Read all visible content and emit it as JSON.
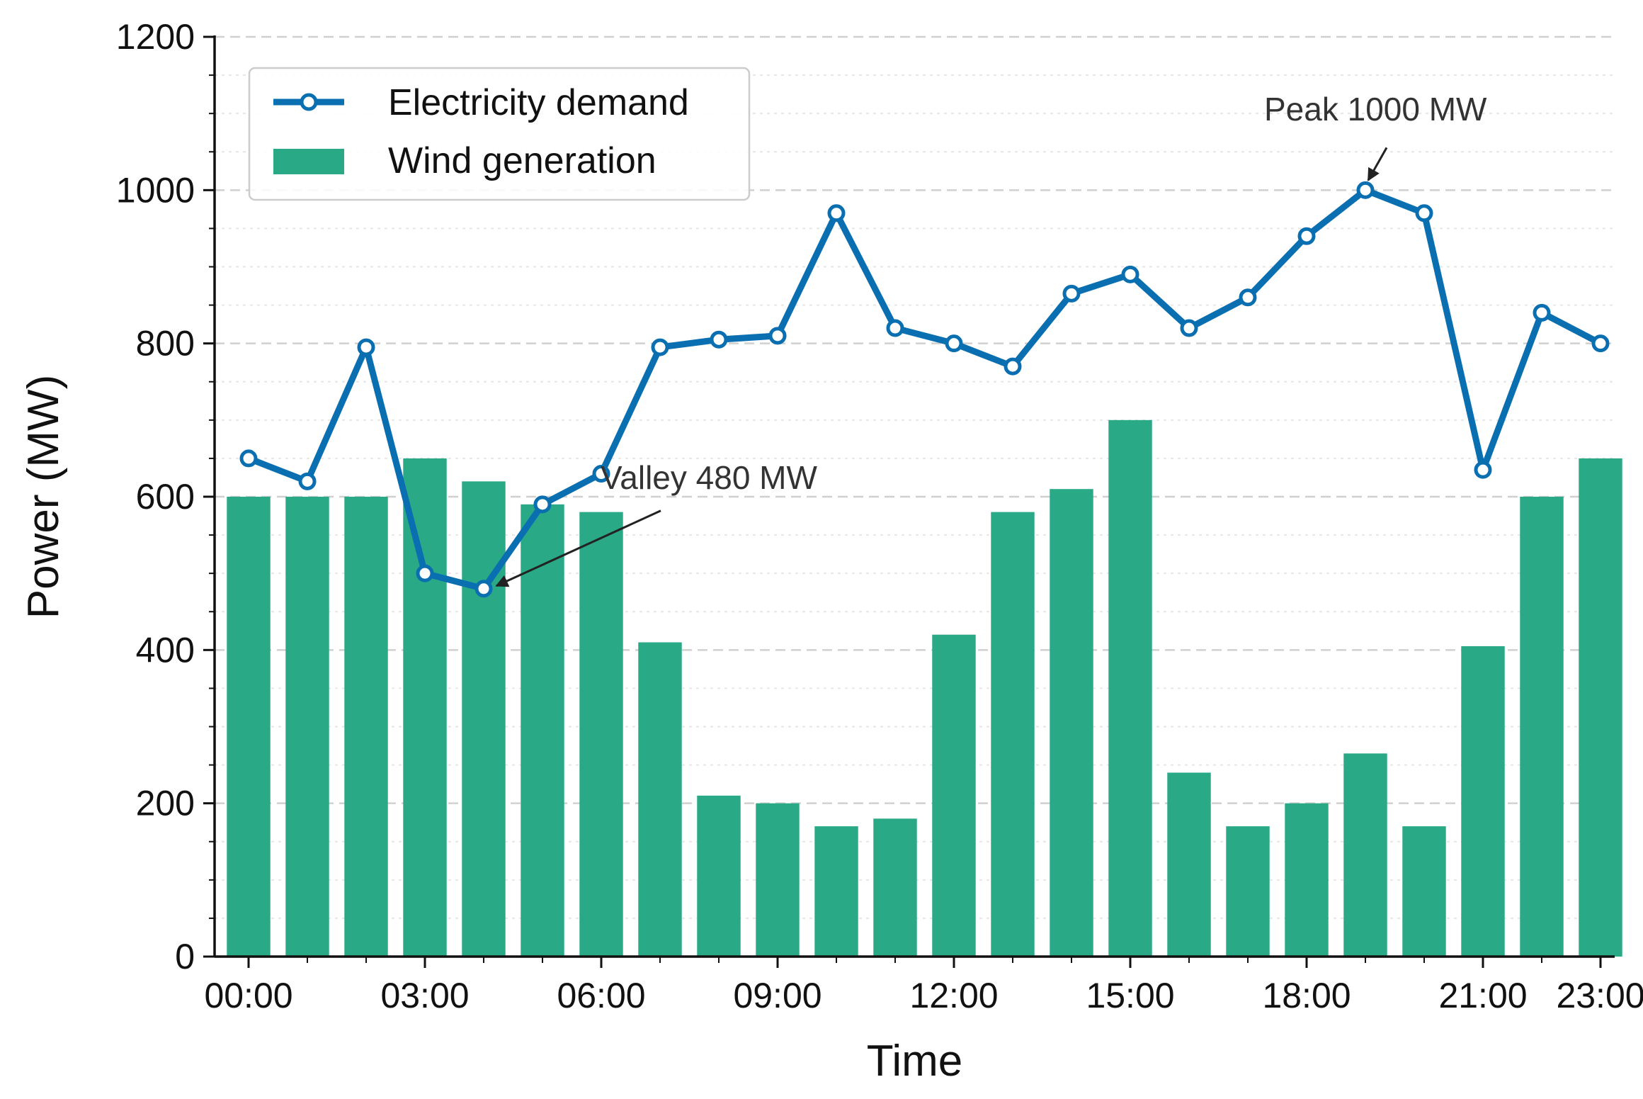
{
  "chart_data": {
    "type": "bar",
    "title": "",
    "xlabel": "Time",
    "ylabel": "Power (MW)",
    "ylim": [
      0,
      1200
    ],
    "yticks": [
      "0",
      "200",
      "400",
      "600",
      "800",
      "1000",
      "1200"
    ],
    "grid": "horizontal dashed",
    "categories": [
      "00:00",
      "01:00",
      "02:00",
      "03:00",
      "04:00",
      "05:00",
      "06:00",
      "07:00",
      "08:00",
      "09:00",
      "10:00",
      "11:00",
      "12:00",
      "13:00",
      "14:00",
      "15:00",
      "16:00",
      "17:00",
      "18:00",
      "19:00",
      "20:00",
      "21:00",
      "22:00",
      "23:00"
    ],
    "xtick_labels": [
      {
        "index": 0,
        "label": "00:00"
      },
      {
        "index": 3,
        "label": "03:00"
      },
      {
        "index": 6,
        "label": "06:00"
      },
      {
        "index": 9,
        "label": "09:00"
      },
      {
        "index": 12,
        "label": "12:00"
      },
      {
        "index": 15,
        "label": "15:00"
      },
      {
        "index": 18,
        "label": "18:00"
      },
      {
        "index": 21,
        "label": "21:00"
      },
      {
        "index": 23,
        "label": "23:00"
      }
    ],
    "series": [
      {
        "name": "Electricity demand",
        "type": "line",
        "color": "#0a6fb0",
        "values": [
          650,
          620,
          795,
          500,
          480,
          590,
          630,
          795,
          805,
          810,
          970,
          820,
          800,
          770,
          865,
          890,
          820,
          860,
          940,
          1000,
          970,
          635,
          840,
          800
        ]
      },
      {
        "name": "Wind generation",
        "type": "bar",
        "color": "#2aa987",
        "values": [
          600,
          600,
          600,
          650,
          620,
          590,
          580,
          410,
          210,
          200,
          170,
          180,
          420,
          580,
          610,
          700,
          240,
          170,
          200,
          265,
          170,
          405,
          600,
          650
        ]
      }
    ],
    "legend": {
      "position": "top-left",
      "entries": [
        "Electricity demand",
        "Wind generation"
      ]
    },
    "annotations": [
      {
        "name": "peak",
        "text": "Peak 1000 MW",
        "point_index": 19,
        "point_value": 1000
      },
      {
        "name": "valley",
        "text": "Valley 480 MW",
        "point_index": 4,
        "point_value": 480
      }
    ]
  }
}
